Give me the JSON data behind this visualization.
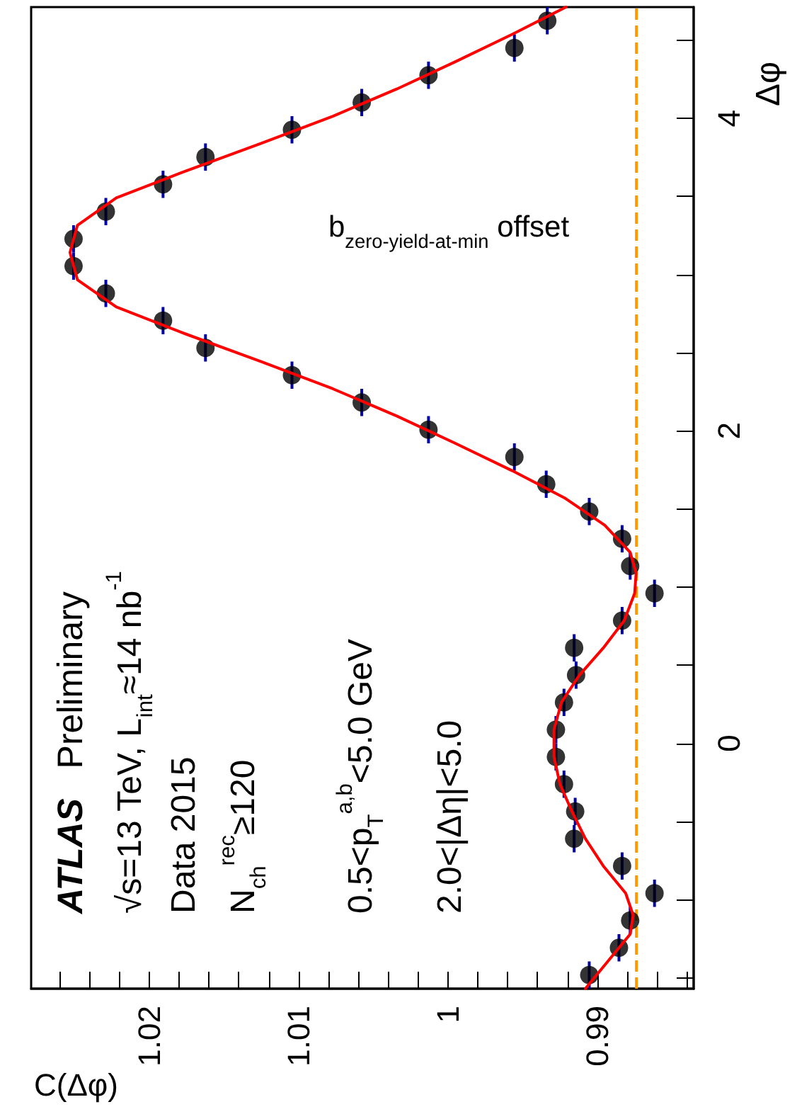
{
  "chart_data": {
    "type": "scatter",
    "xlabel": "C(Δφ)",
    "ylabel": "Δφ",
    "annotations": [
      "ATLAS",
      "Preliminary",
      "√s=13 TeV, L$_{int}$≈14 nb$^{-1}$",
      "Data 2015",
      "N$_{ch}$$^{rec}$≥120",
      "0.5<p$_{T}$$^{a,b}$<5.0 GeV",
      "2.0<|Δη|<5.0"
    ],
    "ylim": [
      -1.5708,
      4.7124
    ],
    "xlim": [
      1.0279,
      0.98355
    ],
    "yticks": [
      {
        "value": -1.5,
        "label": null
      },
      {
        "value": -1,
        "label": null
      },
      {
        "value": -0.5,
        "label": null
      },
      0,
      {
        "value": 0.5,
        "label": null
      },
      {
        "value": 1,
        "label": null
      },
      {
        "value": 1.5,
        "label": null
      },
      2,
      {
        "value": 2.5,
        "label": null
      },
      {
        "value": 3,
        "label": null
      },
      {
        "value": 3.5,
        "label": null
      },
      4,
      {
        "value": 4.5,
        "label": null
      }
    ],
    "xticks": [
      {
        "value": 0.984,
        "label": null
      },
      {
        "value": 0.986,
        "label": null
      },
      {
        "value": 0.988,
        "label": null
      },
      0.99,
      {
        "value": 0.992,
        "label": null
      },
      {
        "value": 0.994,
        "label": null
      },
      {
        "value": 0.996,
        "label": null
      },
      {
        "value": 0.998,
        "label": null
      },
      1,
      {
        "value": 1.002,
        "label": null
      },
      {
        "value": 1.004,
        "label": null
      },
      {
        "value": 1.006,
        "label": null
      },
      {
        "value": 1.008,
        "label": null
      },
      1.01,
      {
        "value": 1.012,
        "label": null
      },
      {
        "value": 1.014,
        "label": null
      },
      {
        "value": 1.016,
        "label": null
      },
      {
        "value": 1.018,
        "label": null
      },
      1.02,
      {
        "value": 1.022,
        "label": null
      },
      {
        "value": 1.024,
        "label": null
      },
      {
        "value": 1.026,
        "label": null
      }
    ],
    "grid": false,
    "ref_lines": [
      {
        "axis": "x",
        "value": 0.98738,
        "label": "b$_{zero-yield-at-min}$ offset",
        "color": "#ff9900",
        "line_style": "dashed"
      }
    ],
    "series": [
      {
        "color": "#000000",
        "marker": "circle",
        "values": [
          -1.4835,
          -1.309,
          -1.1345,
          -0.96,
          -0.7854,
          -0.6109,
          -0.4363,
          -0.2618,
          -0.0873,
          0.0873,
          0.2618,
          0.4363,
          0.6109,
          0.7854,
          0.96,
          1.1345,
          1.309,
          1.4835,
          1.6581,
          1.8326,
          2.0071,
          2.1817,
          2.3562,
          2.5307,
          2.7053,
          2.8798,
          3.0543,
          3.2289,
          3.4034,
          3.5779,
          3.7525,
          3.927,
          4.1015,
          4.2761,
          4.4506,
          4.6251
        ],
        "x": [
          0.99054,
          0.98855,
          0.9878,
          0.98617,
          0.98834,
          0.99155,
          0.99148,
          0.99223,
          0.99277,
          0.99277,
          0.99223,
          0.99142,
          0.99155,
          0.98834,
          0.98617,
          0.9878,
          0.98834,
          0.99054,
          0.99342,
          0.99555,
          1.0013,
          1.00577,
          1.01044,
          1.01623,
          1.01907,
          1.0229,
          1.02506,
          1.02506,
          1.0229,
          1.01907,
          1.01623,
          1.01044,
          1.00577,
          1.0013,
          0.99555,
          0.99335
        ],
        "errors": [
          0.0873,
          0.0873,
          0.0873,
          0.0873,
          0.0873,
          0.0873,
          0.0873,
          0.0873,
          0.0873,
          0.0873,
          0.0873,
          0.0873,
          0.0873,
          0.0873,
          0.0873,
          0.0873,
          0.0873,
          0.0873,
          0.0873,
          0.0873,
          0.0873,
          0.0873,
          0.0873,
          0.0873,
          0.0873,
          0.0873,
          0.0873,
          0.0873,
          0.0873,
          0.0873,
          0.0873,
          0.0873,
          0.0873,
          0.0873,
          0.0873,
          0.0873
        ]
      },
      {
        "type": "line",
        "color": "#ff0000",
        "marker": "none",
        "line_style": "solid",
        "values": [
          -1.5708,
          -1.396,
          -1.222,
          -1.1,
          -0.96,
          -0.785,
          -0.61,
          -0.436,
          -0.262,
          -0.087,
          0.087,
          0.262,
          0.436,
          0.61,
          0.785,
          0.96,
          1.09,
          1.222,
          1.396,
          1.571,
          1.745,
          1.92,
          2.094,
          2.269,
          2.443,
          2.618,
          2.793,
          2.967,
          3.142,
          3.316,
          3.491,
          3.665,
          3.84,
          4.014,
          4.189,
          4.363,
          4.538,
          4.712
        ],
        "x": [
          0.9908,
          0.9893,
          0.9878,
          0.9876,
          0.9881,
          0.9896,
          0.9908,
          0.9917,
          0.9925,
          0.9929,
          0.9929,
          0.9924,
          0.9912,
          0.9896,
          0.9882,
          0.9875,
          0.9874,
          0.9878,
          0.9895,
          0.9922,
          0.9957,
          0.9995,
          1.0034,
          1.0077,
          1.0125,
          1.0175,
          1.0222,
          1.0248,
          1.0253,
          1.0248,
          1.0222,
          1.0175,
          1.0125,
          1.0077,
          1.0034,
          0.9995,
          0.9957,
          0.9921
        ]
      }
    ]
  }
}
